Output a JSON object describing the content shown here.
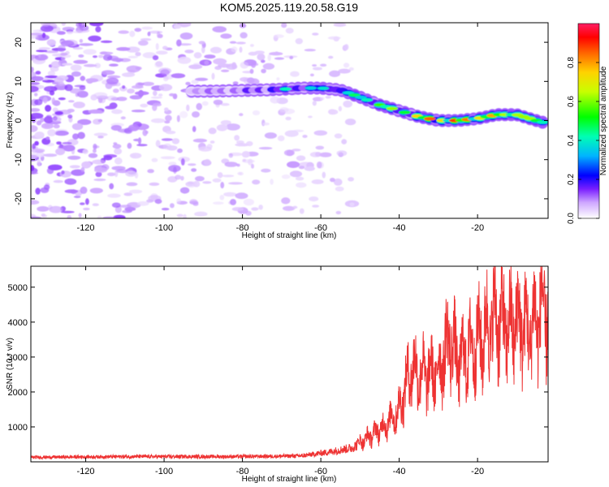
{
  "title": "KOM5.2025.119.20.58.G19",
  "chart_data": [
    {
      "type": "heatmap",
      "xlabel": "Height of straight line (km)",
      "ylabel": "Frequency (Hz)",
      "xlim": [
        -134,
        -2
      ],
      "ylim": [
        -25,
        25
      ],
      "x_ticks": [
        -120,
        -100,
        -80,
        -60,
        -40,
        -20
      ],
      "y_ticks": [
        -20,
        -10,
        0,
        10,
        20
      ],
      "colorbar": {
        "label": "Normalized spectral amplitude",
        "range": [
          0,
          1
        ],
        "ticks": [
          "0.0",
          "0.2",
          "0.4",
          "0.6",
          "0.8"
        ]
      },
      "ridge": {
        "x": [
          -93,
          -88,
          -80,
          -75,
          -70,
          -65,
          -60,
          -55,
          -50,
          -45,
          -40,
          -35,
          -30,
          -25,
          -20,
          -15,
          -10,
          -5,
          -2
        ],
        "freq": [
          7.5,
          7.5,
          7.7,
          7.8,
          8.0,
          8.3,
          8.3,
          7.8,
          6.0,
          4.0,
          2.5,
          1.0,
          0.0,
          0.0,
          0.5,
          1.5,
          1.5,
          0.0,
          -0.8
        ],
        "amplitude": [
          0.2,
          0.18,
          0.22,
          0.3,
          0.38,
          0.4,
          0.42,
          0.45,
          0.5,
          0.62,
          0.55,
          0.72,
          0.85,
          0.8,
          0.9,
          0.72,
          0.88,
          0.6,
          0.75
        ]
      },
      "noise_region_x": [
        -134,
        -52
      ]
    },
    {
      "type": "line",
      "xlabel": "Height of straight line (km)",
      "ylabel": "SNR (10 * v/v)",
      "xlim": [
        -134,
        -2
      ],
      "ylim": [
        0,
        5600
      ],
      "x_ticks": [
        -120,
        -100,
        -80,
        -60,
        -40,
        -20
      ],
      "y_ticks": [
        1000,
        2000,
        3000,
        4000,
        5000
      ],
      "envelope": {
        "x": [
          -134,
          -110,
          -80,
          -65,
          -58,
          -52,
          -48,
          -44,
          -40,
          -37,
          -34,
          -30,
          -27,
          -25,
          -22,
          -20,
          -17,
          -15,
          -12,
          -10,
          -7,
          -4,
          -2
        ],
        "y": [
          130,
          150,
          150,
          170,
          280,
          400,
          700,
          1000,
          1500,
          2700,
          2500,
          2600,
          3600,
          2800,
          3200,
          3400,
          3900,
          4200,
          3800,
          4100,
          3700,
          4300,
          4300
        ]
      },
      "series_color": "#ee3333"
    }
  ]
}
